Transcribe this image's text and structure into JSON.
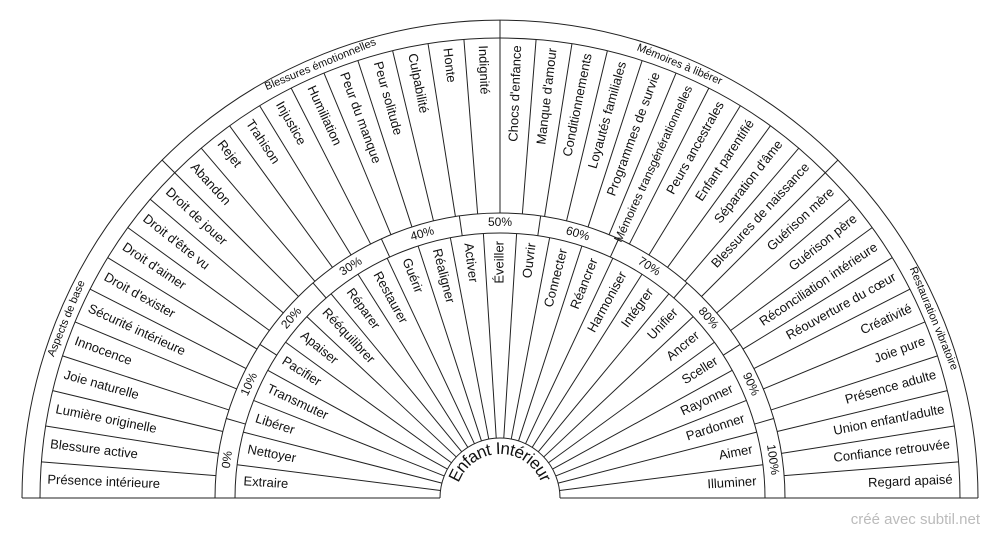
{
  "center": "Enfant Intérieur",
  "inner_ring": [
    "Extraire",
    "Nettoyer",
    "Libérer",
    "Transmuter",
    "Pacifier",
    "Apaiser",
    "Rééquilibrer",
    "Réparer",
    "Restaurer",
    "Guérir",
    "Réaligner",
    "Activer",
    "Éveiller",
    "Ouvrir",
    "Connecter",
    "Réancrer",
    "Harmoniser",
    "Intégrer",
    "Unifier",
    "Ancrer",
    "Sceller",
    "Rayonner",
    "Pardonner",
    "Aimer",
    "Illuminer"
  ],
  "percent_ring": [
    "0%",
    "10%",
    "20%",
    "30%",
    "40%",
    "50%",
    "60%",
    "70%",
    "80%",
    "90%",
    "100%"
  ],
  "outer_ring": [
    "Présence intérieure",
    "Blessure active",
    "Lumière originelle",
    "Joie naturelle",
    "Innocence",
    "Sécurité intérieure",
    "Droit d'exister",
    "Droit d'aimer",
    "Droit d'être vu",
    "Droit de jouer",
    "Abandon",
    "Rejet",
    "Trahison",
    "Injustice",
    "Humiliation",
    "Peur du manque",
    "Peur solitude",
    "Culpabilité",
    "Honte",
    "Indignité",
    "Chocs d'enfance",
    "Manque d'amour",
    "Conditionnements",
    "Loyautés familiales",
    "Programmes de survie",
    "Mémoires transgénérationnelles",
    "Peurs ancestrales",
    "Enfant parentifié",
    "Séparation d'âme",
    "Blessures de naissance",
    "Guérison mère",
    "Guérison père",
    "Réconciliation intérieure",
    "Réouverture du cœur",
    "Créativité",
    "Joie pure",
    "Présence adulte",
    "Union enfant/adulte",
    "Confiance retrouvée",
    "Regard apaisé"
  ],
  "groups": [
    "Aspects de base",
    "Blessures émotionnelles",
    "Mémoires à libérer",
    "Restauration vibratoire"
  ],
  "footer": "créé avec subtil.net"
}
